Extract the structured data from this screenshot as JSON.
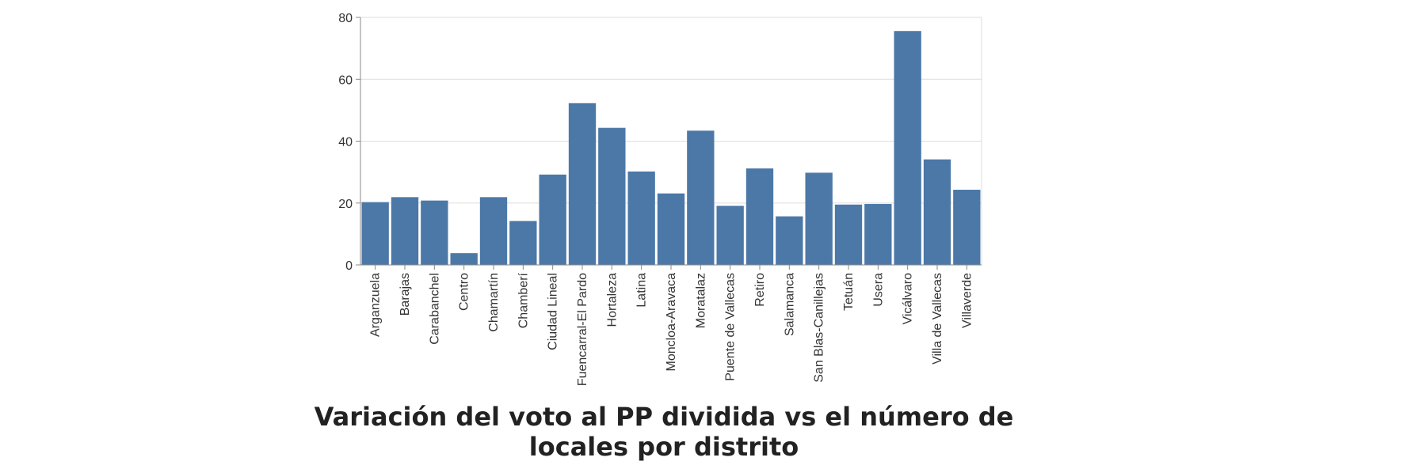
{
  "chart_data": {
    "type": "bar",
    "title": "Variación del voto al PP dividida vs el número de locales por distrito",
    "xlabel": "",
    "ylabel": "",
    "ylim": [
      0,
      80
    ],
    "yticks": [
      0,
      20,
      40,
      60,
      80
    ],
    "grid": true,
    "bar_color": "#4c78a8",
    "categories": [
      "Arganzuela",
      "Barajas",
      "Carabanchel",
      "Centro",
      "Chamartín",
      "Chamberí",
      "Ciudad Lineal",
      "Fuencarral-El Pardo",
      "Hortaleza",
      "Latina",
      "Moncloa-Aravaca",
      "Moratalaz",
      "Puente de Vallecas",
      "Retiro",
      "Salamanca",
      "San Blas-Canillejas",
      "Tetuán",
      "Usera",
      "Vicálvaro",
      "Villa de Vallecas",
      "Villaverde"
    ],
    "values": [
      20.3,
      21.9,
      20.8,
      3.8,
      21.9,
      14.2,
      29.2,
      52.3,
      44.3,
      30.2,
      23.1,
      43.4,
      19.1,
      31.2,
      15.7,
      29.8,
      19.5,
      19.7,
      75.6,
      34.1,
      24.3
    ]
  }
}
